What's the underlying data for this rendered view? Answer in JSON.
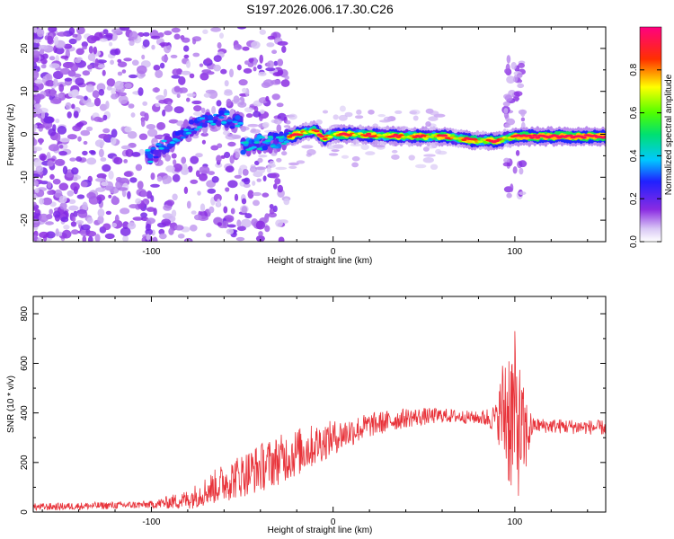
{
  "title": "S197.2026.006.17.30.C26",
  "chart_data": [
    {
      "type": "heatmap",
      "xlabel": "Height of straight line (km)",
      "ylabel": "Frequency (Hz)",
      "xlim": [
        -165,
        150
      ],
      "ylim": [
        -25,
        25
      ],
      "x_ticks": [
        -100,
        0,
        100
      ],
      "y_ticks": [
        -20,
        -10,
        0,
        10,
        20
      ],
      "colorbar": {
        "label": "Normalized spectral amplitude",
        "range": [
          0,
          1
        ],
        "ticks": [
          0.0,
          0.2,
          0.4,
          0.6,
          0.8
        ]
      },
      "ridge": {
        "description_points": [
          [
            -100,
            -5
          ],
          [
            -90,
            -2
          ],
          [
            -80,
            1
          ],
          [
            -70,
            3
          ],
          [
            -60,
            4
          ],
          [
            -50,
            2
          ],
          [
            -52,
            -3
          ],
          [
            -40,
            -2
          ],
          [
            -30,
            -1.5
          ],
          [
            -20,
            0
          ],
          [
            -10,
            1
          ],
          [
            -5,
            -1
          ],
          [
            0,
            0
          ],
          [
            10,
            0
          ],
          [
            20,
            -0.2
          ],
          [
            40,
            -0.5
          ],
          [
            60,
            -0.5
          ],
          [
            70,
            -1
          ],
          [
            80,
            -1.5
          ],
          [
            90,
            -1.5
          ],
          [
            100,
            -0.5
          ],
          [
            110,
            -0.5
          ],
          [
            150,
            -0.5
          ]
        ],
        "peak_amplitude": 0.95
      }
    },
    {
      "type": "line",
      "xlabel": "Height of straight line (km)",
      "ylabel": "SNR (10 * v/v)",
      "xlim": [
        -165,
        150
      ],
      "ylim": [
        0,
        870
      ],
      "x_ticks": [
        -100,
        0,
        100
      ],
      "y_ticks": [
        0,
        200,
        400,
        600,
        800
      ],
      "color": "#e8333a",
      "envelope": {
        "x": [
          -165,
          -100,
          -80,
          -60,
          -40,
          -20,
          0,
          20,
          40,
          60,
          80,
          90,
          95,
          100,
          105,
          110,
          150
        ],
        "mean": [
          20,
          30,
          50,
          120,
          180,
          240,
          300,
          350,
          380,
          390,
          380,
          380,
          420,
          380,
          300,
          350,
          340
        ],
        "amplitude": [
          15,
          15,
          40,
          80,
          100,
          100,
          70,
          50,
          40,
          30,
          25,
          60,
          300,
          350,
          200,
          30,
          30
        ]
      }
    }
  ]
}
